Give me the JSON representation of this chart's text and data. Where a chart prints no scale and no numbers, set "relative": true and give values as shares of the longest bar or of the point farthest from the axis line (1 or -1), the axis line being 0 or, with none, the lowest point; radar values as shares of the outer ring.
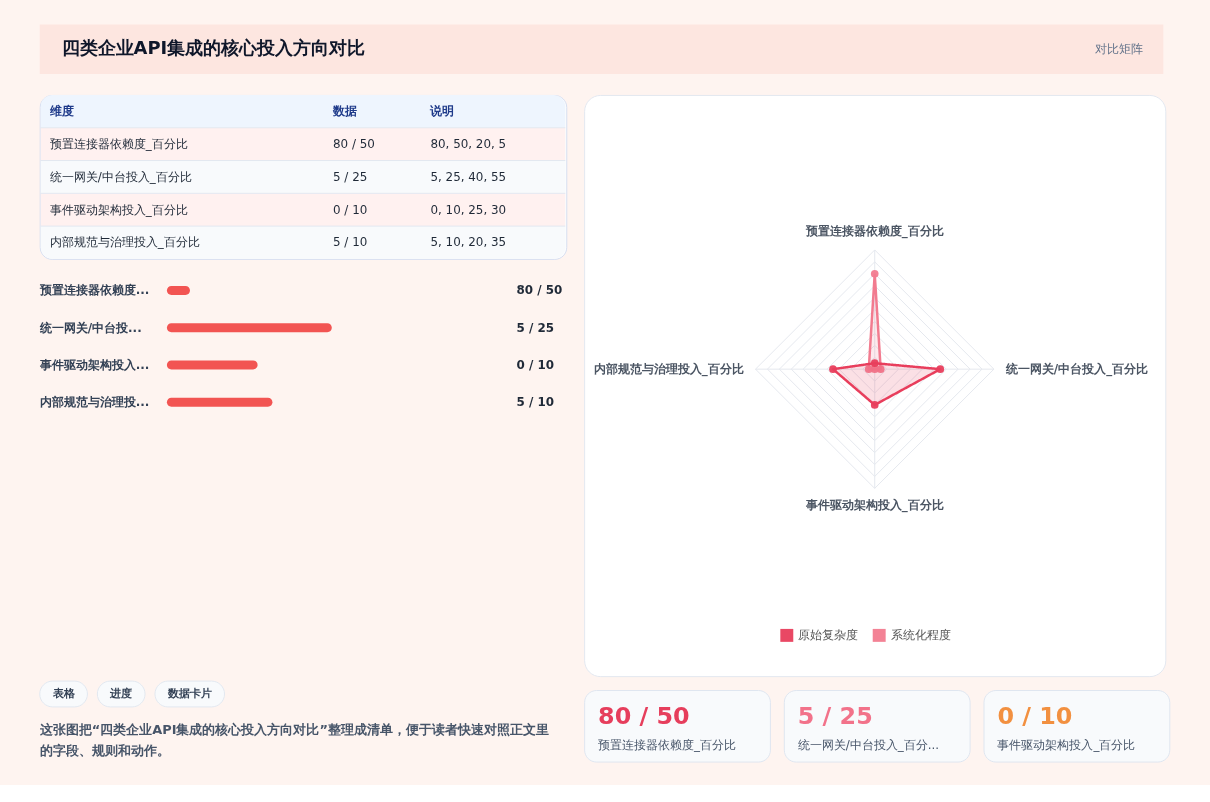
{
  "chart_data": [
    {
      "type": "other",
      "title": "四类企业API集成的核心投入方向对比",
      "subtitle": "对比矩阵",
      "categories": [
        "维度",
        "数据",
        "说明"
      ],
      "cell_labels": [
        [
          "预置连接器依赖度_百分比",
          "80 / 50",
          "80, 50, 20, 5"
        ],
        [
          "统一网关/中台投入_百分比",
          "5 / 25",
          "5, 25, 40, 55"
        ],
        [
          "事件驱动架构投入_百分比",
          "0 / 10",
          "0, 10, 25, 30"
        ],
        [
          "内部规范与治理投入_百分比",
          "5 / 10",
          "5, 10, 20, 35"
        ]
      ]
    },
    {
      "type": "bar",
      "orientation": "horizontal",
      "relative": true,
      "categories": [
        "预置连接器依赖度...",
        "统一网关/中台投...",
        "事件驱动架构投入...",
        "内部规范与治理投..."
      ],
      "values": [
        0.14,
        1,
        0.55,
        0.64
      ],
      "annotations": [
        "80 / 50",
        "5 / 25",
        "0 / 10",
        "5 / 10"
      ],
      "color": "#f25452"
    },
    {
      "type": "other",
      "categories": [
        "表格",
        "进度",
        "数据卡片"
      ],
      "annotations": [
        "这张图把“四类企业API集成的核心投入方向对比”整理成清单，便于读者快速对照正文里的字段、规则和动作。"
      ]
    },
    {
      "type": "radar",
      "relative": true,
      "categories": [
        "预置连接器依赖度_百分比",
        "统一网关/中台投入_百分比",
        "事件驱动架构投入_百分比",
        "内部规范与治理投入_百分比"
      ],
      "series": [
        {
          "name": "原始复杂度",
          "color": "#e83e5c",
          "values": [
            0.05,
            0.55,
            0.3,
            0.35
          ]
        },
        {
          "name": "系统化程度",
          "color": "#f27b8f",
          "values": [
            0.8,
            0.05,
            0,
            0.05
          ]
        }
      ],
      "legend": "bottom",
      "grid": true,
      "marker": "circle"
    },
    {
      "type": "other",
      "categories": [
        "预置连接器依赖度_百分比",
        "统一网关/中台投入_百分...",
        "事件驱动架构投入_百分比"
      ],
      "value_labels": [
        "80 / 50",
        "5 / 25",
        "0 / 10"
      ]
    }
  ]
}
